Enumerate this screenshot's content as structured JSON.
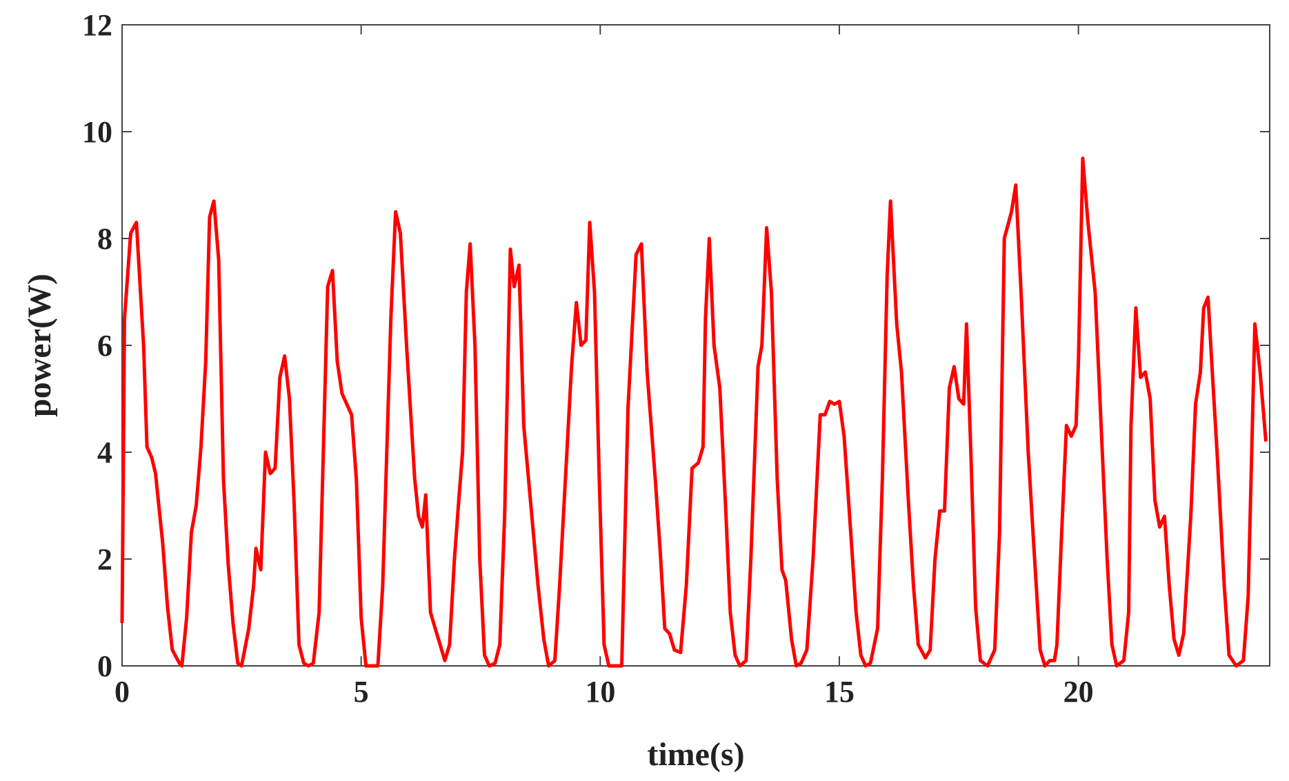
{
  "chart_data": {
    "type": "line",
    "xlabel": "time(s)",
    "ylabel": "power(W)",
    "xlim": [
      0,
      24
    ],
    "ylim": [
      0,
      12
    ],
    "xticks": [
      0,
      5,
      10,
      15,
      20
    ],
    "yticks": [
      0,
      2,
      4,
      6,
      8,
      10,
      12
    ],
    "x": [
      0,
      0.05,
      0.18,
      0.3,
      0.45,
      0.52,
      0.62,
      0.7,
      0.85,
      0.95,
      1.05,
      1.2,
      1.25,
      1.35,
      1.45,
      1.55,
      1.65,
      1.75,
      1.83,
      1.92,
      2.02,
      2.12,
      2.22,
      2.32,
      2.42,
      2.5,
      2.65,
      2.75,
      2.8,
      2.9,
      3.0,
      3.1,
      3.2,
      3.3,
      3.4,
      3.5,
      3.6,
      3.7,
      3.8,
      3.9,
      4.0,
      4.12,
      4.3,
      4.4,
      4.5,
      4.6,
      4.8,
      4.9,
      5.0,
      5.1,
      5.35,
      5.45,
      5.62,
      5.72,
      5.82,
      5.95,
      6.12,
      6.2,
      6.28,
      6.35,
      6.45,
      6.55,
      6.65,
      6.75,
      6.85,
      6.95,
      7.05,
      7.12,
      7.2,
      7.28,
      7.38,
      7.48,
      7.58,
      7.68,
      7.8,
      7.9,
      8.0,
      8.12,
      8.2,
      8.3,
      8.4,
      8.55,
      8.7,
      8.82,
      8.92,
      9.05,
      9.15,
      9.4,
      9.5,
      9.6,
      9.7,
      9.78,
      9.88,
      9.98,
      10.08,
      10.18,
      10.45,
      10.58,
      10.75,
      10.86,
      10.98,
      11.15,
      11.25,
      11.35,
      11.45,
      11.55,
      11.68,
      11.8,
      11.92,
      12.05,
      12.15,
      12.2,
      12.28,
      12.38,
      12.5,
      12.62,
      12.72,
      12.82,
      12.92,
      13.05,
      13.15,
      13.3,
      13.38,
      13.48,
      13.58,
      13.7,
      13.8,
      13.88,
      14.0,
      14.1,
      14.2,
      14.32,
      14.45,
      14.6,
      14.7,
      14.8,
      14.9,
      15.0,
      15.1,
      15.2,
      15.35,
      15.45,
      15.55,
      15.65,
      15.8,
      15.9,
      16.0,
      16.07,
      16.2,
      16.3,
      16.45,
      16.55,
      16.65,
      16.8,
      16.9,
      17.0,
      17.1,
      17.2,
      17.3,
      17.4,
      17.5,
      17.6,
      17.66,
      17.75,
      17.85,
      17.95,
      18.1,
      18.25,
      18.35,
      18.45,
      18.6,
      18.69,
      18.8,
      18.95,
      19.05,
      19.2,
      19.3,
      19.4,
      19.5,
      19.55,
      19.65,
      19.75,
      19.85,
      19.95,
      20.0,
      20.09,
      20.2,
      20.35,
      20.5,
      20.6,
      20.7,
      20.8,
      20.95,
      21.05,
      21.1,
      21.2,
      21.3,
      21.4,
      21.5,
      21.6,
      21.7,
      21.8,
      21.9,
      22.0,
      22.1,
      22.2,
      22.35,
      22.45,
      22.55,
      22.62,
      22.71,
      22.8,
      22.9,
      23.05,
      23.15,
      23.3,
      23.45,
      23.55,
      23.69,
      23.8,
      23.92
    ],
    "series": [
      {
        "name": "power",
        "color": "#ff0000",
        "values": [
          0.8,
          6.5,
          8.1,
          8.3,
          6,
          4.1,
          3.9,
          3.6,
          2.3,
          1.1,
          0.3,
          0.05,
          0,
          0.9,
          2.5,
          3.0,
          4.1,
          5.7,
          8.4,
          8.7,
          7.6,
          3.5,
          1.9,
          0.8,
          0.05,
          0,
          0.7,
          1.5,
          2.2,
          1.8,
          4.0,
          3.6,
          3.7,
          5.4,
          5.8,
          5.0,
          3.0,
          0.4,
          0.05,
          0,
          0.05,
          1.0,
          7.1,
          7.4,
          5.7,
          5.1,
          4.7,
          3.5,
          0.9,
          0,
          0,
          1.5,
          6.5,
          8.5,
          8.1,
          6,
          3.5,
          2.8,
          2.6,
          3.2,
          1.0,
          0.7,
          0.4,
          0.1,
          0.4,
          2.0,
          3.2,
          4.0,
          7.0,
          7.9,
          6.0,
          2.0,
          0.2,
          0,
          0.05,
          0.4,
          2.8,
          7.8,
          7.1,
          7.5,
          4.5,
          3.0,
          1.5,
          0.5,
          0,
          0.1,
          1.5,
          5.6,
          6.8,
          6.0,
          6.1,
          8.3,
          7.0,
          3.5,
          0.4,
          0,
          0,
          4.8,
          7.7,
          7.9,
          5.5,
          3.5,
          2.2,
          0.7,
          0.6,
          0.3,
          0.25,
          1.5,
          3.7,
          3.8,
          4.1,
          6.5,
          8.0,
          6.0,
          5.2,
          3.0,
          1.0,
          0.2,
          0,
          0.1,
          2.0,
          5.6,
          6.0,
          8.2,
          7.0,
          3.5,
          1.8,
          1.6,
          0.5,
          0,
          0.05,
          0.3,
          2.0,
          4.7,
          4.7,
          4.95,
          4.9,
          4.95,
          4.3,
          3.0,
          1.0,
          0.2,
          0,
          0.05,
          0.7,
          3.5,
          7.3,
          8.7,
          6.4,
          5.5,
          3.0,
          1.5,
          0.4,
          0.15,
          0.3,
          2.0,
          2.9,
          2.9,
          5.2,
          5.6,
          5.0,
          4.9,
          6.4,
          4.0,
          1.1,
          0.1,
          0,
          0.3,
          2.5,
          8.0,
          8.5,
          9.0,
          7.0,
          4.0,
          2.5,
          0.3,
          0,
          0.1,
          0.1,
          0.4,
          2.5,
          4.5,
          4.3,
          4.5,
          5.7,
          9.5,
          8.3,
          7.0,
          4.0,
          2.0,
          0.4,
          0,
          0.1,
          1.0,
          4.5,
          6.7,
          5.4,
          5.5,
          5.0,
          3.1,
          2.6,
          2.8,
          1.5,
          0.5,
          0.2,
          0.6,
          2.8,
          4.9,
          5.5,
          6.7,
          6.9,
          5.5,
          4.0,
          1.5,
          0.2,
          0,
          0.1,
          1.3,
          6.4,
          5.5,
          4.2
        ]
      }
    ]
  }
}
